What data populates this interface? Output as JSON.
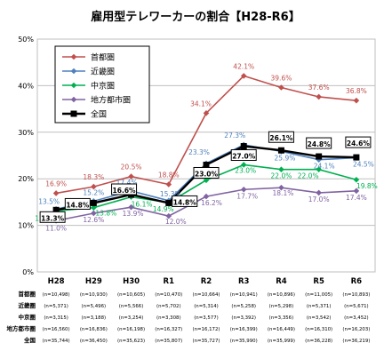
{
  "chart_data": {
    "type": "line",
    "title": "雇用型テレワーカーの割合【H28-R6】",
    "categories": [
      "H28",
      "H29",
      "H30",
      "R1",
      "R2",
      "R3",
      "R4",
      "R5",
      "R6"
    ],
    "ylim": [
      0,
      50
    ],
    "yticks": [
      "0%",
      "10%",
      "20%",
      "30%",
      "40%",
      "50%"
    ],
    "grid": true,
    "legend_position": "top-left",
    "series": [
      {
        "name": "首都圏",
        "color": "#c0504d",
        "marker": "diamond",
        "values": [
          16.9,
          18.3,
          20.5,
          18.8,
          34.1,
          42.1,
          39.6,
          37.6,
          36.8
        ],
        "labels": [
          "16.9%",
          "18.3%",
          "20.5%",
          "18.8%",
          "34.1%",
          "42.1%",
          "39.6%",
          "37.6%",
          "36.8%"
        ]
      },
      {
        "name": "近畿圏",
        "color": "#4f81bd",
        "marker": "diamond",
        "values": [
          13.5,
          15.2,
          17.4,
          15.3,
          23.3,
          27.3,
          25.9,
          24.1,
          24.5
        ],
        "labels": [
          "13.5%",
          "15.2%",
          "17.4%",
          "15.3%",
          "23.3%",
          "27.3%",
          "25.9%",
          "24.1%",
          "24.5%"
        ]
      },
      {
        "name": "中京圏",
        "color": "#00b050",
        "marker": "diamond",
        "values": [
          13.1,
          13.8,
          16.1,
          14.9,
          19.7,
          23.0,
          22.0,
          22.0,
          19.8
        ],
        "labels": [
          "13.1%",
          "13.8%",
          "16.1%",
          "14.9%",
          "19.7%",
          "23.0%",
          "22.0%",
          "22.0%",
          "19.8%"
        ]
      },
      {
        "name": "地方都市圏",
        "color": "#8064a2",
        "marker": "diamond",
        "values": [
          11.0,
          12.6,
          13.9,
          12.0,
          16.2,
          17.7,
          18.1,
          17.0,
          17.4
        ],
        "labels": [
          "11.0%",
          "12.6%",
          "13.9%",
          "12.0%",
          "16.2%",
          "17.7%",
          "18.1%",
          "17.0%",
          "17.4%"
        ]
      },
      {
        "name": "全国",
        "color": "#000000",
        "marker": "square",
        "values": [
          13.3,
          14.8,
          16.6,
          14.8,
          23.0,
          27.0,
          26.1,
          24.8,
          24.6
        ],
        "labels": [
          "13.3%",
          "14.8%",
          "16.6%",
          "14.8%",
          "23.0%",
          "27.0%",
          "26.1%",
          "24.8%",
          "24.6%"
        ]
      }
    ],
    "sample_table": [
      {
        "name": "首都圏",
        "values": [
          "(n=10,498)",
          "(n=10,930)",
          "(n=10,605)",
          "(n=10,470)",
          "(n=10,664)",
          "(n=10,941)",
          "(n=10,896)",
          "(n=11,005)",
          "(n=10,893)"
        ]
      },
      {
        "name": "近畿圏",
        "values": [
          "(n=5,371)",
          "(n=5,496)",
          "(n=5,566)",
          "(n=5,702)",
          "(n=5,314)",
          "(n=5,258)",
          "(n=5,298)",
          "(n=5,371)",
          "(n=5,671)"
        ]
      },
      {
        "name": "中京圏",
        "values": [
          "(n=3,315)",
          "(n=3,188)",
          "(n=3,254)",
          "(n=3,308)",
          "(n=3,577)",
          "(n=3,392)",
          "(n=3,356)",
          "(n=3,542)",
          "(n=3,452)"
        ]
      },
      {
        "name": "地方都市圏",
        "values": [
          "(n=16,560)",
          "(n=16,836)",
          "(n=16,198)",
          "(n=16,327)",
          "(n=16,172)",
          "(n=16,399)",
          "(n=16,449)",
          "(n=16,310)",
          "(n=16,203)"
        ]
      },
      {
        "name": "全国",
        "values": [
          "(n=35,744)",
          "(n=36,450)",
          "(n=35,623)",
          "(n=35,807)",
          "(n=35,727)",
          "(n=35,990)",
          "(n=35,999)",
          "(n=36,228)",
          "(n=36,219)"
        ]
      }
    ]
  }
}
